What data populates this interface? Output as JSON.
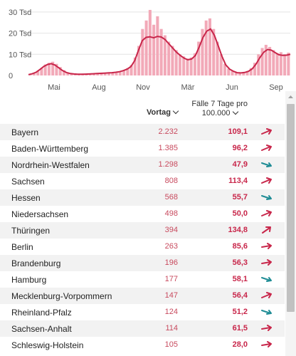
{
  "chart_data": {
    "type": "area",
    "y_ticks": [
      {
        "label": "30 Tsd",
        "value": 30000
      },
      {
        "label": "20 Tsd",
        "value": 20000
      },
      {
        "label": "10 Tsd",
        "value": 10000
      },
      {
        "label": "0",
        "value": 0
      }
    ],
    "ylim": [
      0,
      33000
    ],
    "x_labels": [
      "Mai",
      "Aug",
      "Nov",
      "Mär",
      "Jun",
      "Sep"
    ],
    "line_color": "#c8264a",
    "bar_color": "#f2a9b8",
    "line_values": [
      400,
      800,
      1500,
      2800,
      4200,
      5200,
      5600,
      4900,
      3600,
      2300,
      1400,
      900,
      700,
      600,
      600,
      650,
      700,
      800,
      900,
      1000,
      1100,
      1200,
      1300,
      1500,
      1800,
      2300,
      3000,
      4200,
      7000,
      12000,
      16500,
      18000,
      18300,
      17800,
      18500,
      18200,
      17000,
      15000,
      13000,
      11000,
      9500,
      8200,
      7400,
      7800,
      9500,
      13500,
      18000,
      21000,
      22000,
      19000,
      14000,
      9000,
      5000,
      3000,
      2000,
      1300,
      1200,
      1400,
      2000,
      3200,
      5500,
      8500,
      11000,
      12300,
      12000,
      10800,
      9800,
      9500,
      9600,
      10000
    ],
    "bar_values": [
      300,
      1000,
      2000,
      3500,
      5200,
      6000,
      6500,
      5500,
      4000,
      2500,
      1500,
      900,
      700,
      500,
      500,
      600,
      650,
      800,
      900,
      1000,
      1150,
      1250,
      1350,
      1600,
      2000,
      2500,
      3500,
      5000,
      8500,
      14000,
      22000,
      26000,
      31000,
      24000,
      28000,
      22000,
      19000,
      16000,
      14000,
      12000,
      10000,
      9000,
      8000,
      8500,
      10500,
      16000,
      22000,
      26000,
      27000,
      22000,
      16000,
      10000,
      5500,
      3200,
      2100,
      1400,
      1200,
      1500,
      2100,
      3500,
      6000,
      10000,
      13000,
      14500,
      13500,
      12000,
      10500,
      11000,
      10000,
      10800
    ]
  },
  "table": {
    "header_vortag": "Vortag",
    "header_faelle_line1": "Fälle 7 Tage pro",
    "header_faelle_line2": "100.000",
    "rows": [
      {
        "name": "Bayern",
        "vortag": "2.232",
        "faelle": "109,1",
        "trend": "up"
      },
      {
        "name": "Baden-Württemberg",
        "vortag": "1.385",
        "faelle": "96,2",
        "trend": "up"
      },
      {
        "name": "Nordrhein-Westfalen",
        "vortag": "1.298",
        "faelle": "47,9",
        "trend": "down"
      },
      {
        "name": "Sachsen",
        "vortag": "808",
        "faelle": "113,4",
        "trend": "up"
      },
      {
        "name": "Hessen",
        "vortag": "568",
        "faelle": "55,7",
        "trend": "down"
      },
      {
        "name": "Niedersachsen",
        "vortag": "498",
        "faelle": "50,0",
        "trend": "up"
      },
      {
        "name": "Thüringen",
        "vortag": "394",
        "faelle": "134,8",
        "trend": "steep-up"
      },
      {
        "name": "Berlin",
        "vortag": "263",
        "faelle": "85,6",
        "trend": "flat"
      },
      {
        "name": "Brandenburg",
        "vortag": "196",
        "faelle": "56,3",
        "trend": "flat"
      },
      {
        "name": "Hamburg",
        "vortag": "177",
        "faelle": "58,1",
        "trend": "down"
      },
      {
        "name": "Mecklenburg-Vorpommern",
        "vortag": "147",
        "faelle": "56,4",
        "trend": "up"
      },
      {
        "name": "Rheinland-Pfalz",
        "vortag": "124",
        "faelle": "51,2",
        "trend": "down"
      },
      {
        "name": "Sachsen-Anhalt",
        "vortag": "114",
        "faelle": "61,5",
        "trend": "flat"
      },
      {
        "name": "Schleswig-Holstein",
        "vortag": "105",
        "faelle": "28,0",
        "trend": "flat"
      }
    ]
  },
  "colors": {
    "up": "#c8264a",
    "down": "#1f8c95",
    "flat": "#c8264a"
  }
}
